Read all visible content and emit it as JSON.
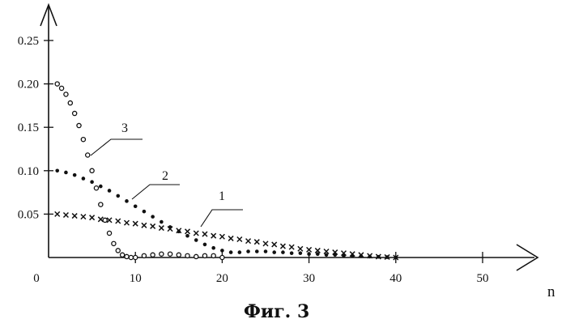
{
  "chart_data": {
    "type": "scatter",
    "xlabel": "n",
    "ylabel": "",
    "xlim": [
      0,
      55
    ],
    "ylim": [
      0,
      0.26
    ],
    "xticks": [
      "0",
      "10",
      "20",
      "30",
      "40",
      "50"
    ],
    "yticks": [
      "0.05",
      "0.10",
      "0.15",
      "0.20",
      "0.25"
    ],
    "grid": false,
    "series": [
      {
        "name": "1",
        "marker": "x",
        "x": [
          1,
          2,
          3,
          4,
          5,
          6,
          7,
          8,
          9,
          10,
          11,
          12,
          13,
          14,
          15,
          16,
          17,
          18,
          19,
          20,
          21,
          22,
          23,
          24,
          25,
          26,
          27,
          28,
          29,
          30,
          31,
          32,
          33,
          34,
          35,
          36,
          37,
          38,
          39,
          40
        ],
        "y": [
          0.05,
          0.049,
          0.048,
          0.047,
          0.046,
          0.044,
          0.043,
          0.042,
          0.04,
          0.039,
          0.037,
          0.036,
          0.034,
          0.033,
          0.031,
          0.03,
          0.028,
          0.027,
          0.025,
          0.024,
          0.022,
          0.021,
          0.019,
          0.018,
          0.016,
          0.015,
          0.013,
          0.012,
          0.01,
          0.009,
          0.008,
          0.007,
          0.006,
          0.005,
          0.004,
          0.003,
          0.002,
          0.001,
          0.0005,
          0.0
        ]
      },
      {
        "name": "2",
        "marker": "dot",
        "x": [
          1,
          2,
          3,
          4,
          5,
          6,
          7,
          8,
          9,
          10,
          11,
          12,
          13,
          14,
          15,
          16,
          17,
          18,
          19,
          20,
          21,
          22,
          23,
          24,
          25,
          26,
          27,
          28,
          29,
          30,
          31,
          32,
          33,
          34,
          35,
          36,
          37,
          38,
          39,
          40
        ],
        "y": [
          0.1,
          0.098,
          0.095,
          0.091,
          0.087,
          0.082,
          0.077,
          0.071,
          0.065,
          0.059,
          0.053,
          0.047,
          0.041,
          0.035,
          0.03,
          0.025,
          0.02,
          0.015,
          0.011,
          0.008,
          0.006,
          0.006,
          0.007,
          0.007,
          0.007,
          0.006,
          0.006,
          0.005,
          0.005,
          0.004,
          0.004,
          0.003,
          0.003,
          0.002,
          0.002,
          0.0015,
          0.001,
          0.0008,
          0.0004,
          0.0
        ]
      },
      {
        "name": "3",
        "marker": "circle",
        "x": [
          1,
          1.5,
          2,
          2.5,
          3,
          3.5,
          4,
          4.5,
          5,
          5.5,
          6,
          6.5,
          7,
          7.5,
          8,
          8.5,
          9,
          9.5,
          10,
          11,
          12,
          13,
          14,
          15,
          16,
          17,
          18,
          19,
          20
        ],
        "y": [
          0.2,
          0.195,
          0.188,
          0.178,
          0.166,
          0.152,
          0.136,
          0.118,
          0.1,
          0.08,
          0.061,
          0.043,
          0.028,
          0.016,
          0.008,
          0.003,
          0.001,
          0.0,
          0.0,
          0.002,
          0.003,
          0.004,
          0.004,
          0.003,
          0.002,
          0.001,
          0.002,
          0.002,
          0.0
        ]
      }
    ]
  },
  "caption": "Фиг. 3"
}
